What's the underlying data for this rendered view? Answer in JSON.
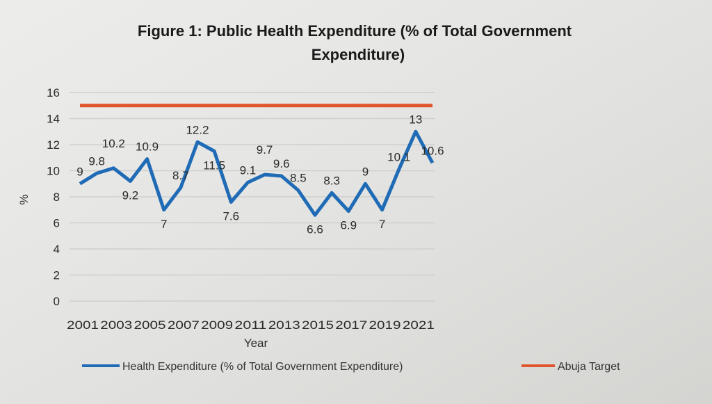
{
  "chart_data": {
    "type": "line",
    "title": "Figure 1: Public Health Expenditure (% of Total Government Expenditure)",
    "title_lines": [
      "Figure 1: Public Health Expenditure (% of Total Government",
      "Expenditure)"
    ],
    "xlabel": "Year",
    "ylabel": "%",
    "ylim": [
      0,
      16
    ],
    "yticks": [
      "0",
      "2",
      "4",
      "6",
      "8",
      "10",
      "12",
      "14",
      "16"
    ],
    "xtick_labels": [
      "2001",
      "2003",
      "2005",
      "2007",
      "2009",
      "2011",
      "2013",
      "2015",
      "2017",
      "2019",
      "2021"
    ],
    "x": [
      2001,
      2002,
      2003,
      2004,
      2005,
      2006,
      2007,
      2008,
      2009,
      2010,
      2011,
      2012,
      2013,
      2014,
      2015,
      2016,
      2017,
      2018,
      2019,
      2020,
      2021,
      2022
    ],
    "grid": true,
    "legend_position": "bottom",
    "series": [
      {
        "name": "Health Expenditure (% of Total Government Expenditure)",
        "color": "#1f6bb5",
        "values": [
          9,
          9.8,
          10.2,
          9.2,
          10.9,
          7,
          8.7,
          12.2,
          11.5,
          7.6,
          9.1,
          9.7,
          9.6,
          8.5,
          6.6,
          8.3,
          6.9,
          9,
          7,
          10.1,
          13,
          10.6
        ],
        "labels": [
          "9",
          "9.8",
          "10.2",
          "9.2",
          "10.9",
          "7",
          "8.7",
          "12.2",
          "11.5",
          "7.6",
          "9.1",
          "9.7",
          "9.6",
          "8.5",
          "6.6",
          "8.3",
          "6.9",
          "9",
          "7",
          "10.1",
          "13",
          "10.6"
        ]
      },
      {
        "name": "Abuja Target",
        "color": "#e0552e",
        "values": [
          15,
          15,
          15,
          15,
          15,
          15,
          15,
          15,
          15,
          15,
          15,
          15,
          15,
          15,
          15,
          15,
          15,
          15,
          15,
          15,
          15,
          15
        ]
      }
    ]
  }
}
